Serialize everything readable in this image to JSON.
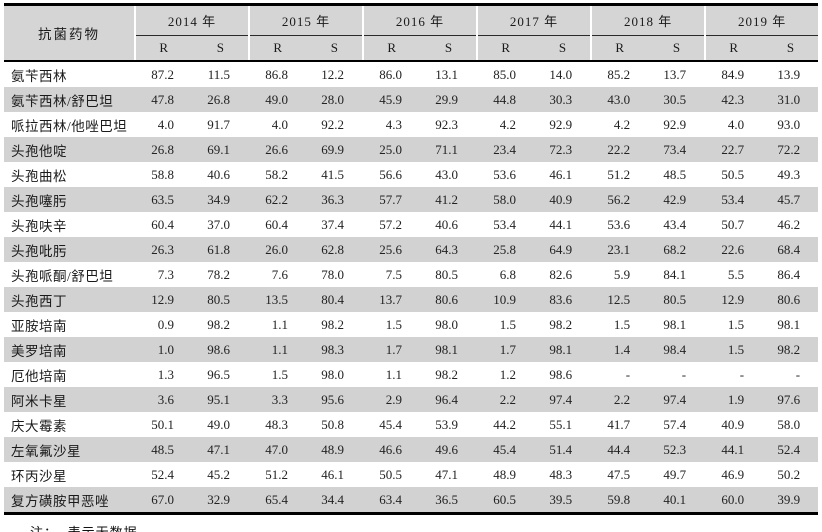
{
  "table": {
    "drug_header": "抗菌药物",
    "years": [
      "2014 年",
      "2015 年",
      "2016 年",
      "2017 年",
      "2018 年",
      "2019 年"
    ],
    "sub_headers": [
      "R",
      "S"
    ],
    "rows": [
      {
        "name": "氨苄西林",
        "values": [
          "87.2",
          "11.5",
          "86.8",
          "12.2",
          "86.0",
          "13.1",
          "85.0",
          "14.0",
          "85.2",
          "13.7",
          "84.9",
          "13.9"
        ]
      },
      {
        "name": "氨苄西林/舒巴坦",
        "values": [
          "47.8",
          "26.8",
          "49.0",
          "28.0",
          "45.9",
          "29.9",
          "44.8",
          "30.3",
          "43.0",
          "30.5",
          "42.3",
          "31.0"
        ]
      },
      {
        "name": "哌拉西林/他唑巴坦",
        "values": [
          "4.0",
          "91.7",
          "4.0",
          "92.2",
          "4.3",
          "92.3",
          "4.2",
          "92.9",
          "4.2",
          "92.9",
          "4.0",
          "93.0"
        ]
      },
      {
        "name": "头孢他啶",
        "values": [
          "26.8",
          "69.1",
          "26.6",
          "69.9",
          "25.0",
          "71.1",
          "23.4",
          "72.3",
          "22.2",
          "73.4",
          "22.7",
          "72.2"
        ]
      },
      {
        "name": "头孢曲松",
        "values": [
          "58.8",
          "40.6",
          "58.2",
          "41.5",
          "56.6",
          "43.0",
          "53.6",
          "46.1",
          "51.2",
          "48.5",
          "50.5",
          "49.3"
        ]
      },
      {
        "name": "头孢噻肟",
        "values": [
          "63.5",
          "34.9",
          "62.2",
          "36.3",
          "57.7",
          "41.2",
          "58.0",
          "40.9",
          "56.2",
          "42.9",
          "53.4",
          "45.7"
        ]
      },
      {
        "name": "头孢呋辛",
        "values": [
          "60.4",
          "37.0",
          "60.4",
          "37.4",
          "57.2",
          "40.6",
          "53.4",
          "44.1",
          "53.6",
          "43.4",
          "50.7",
          "46.2"
        ]
      },
      {
        "name": "头孢吡肟",
        "values": [
          "26.3",
          "61.8",
          "26.0",
          "62.8",
          "25.6",
          "64.3",
          "25.8",
          "64.9",
          "23.1",
          "68.2",
          "22.6",
          "68.4"
        ]
      },
      {
        "name": "头孢哌酮/舒巴坦",
        "values": [
          "7.3",
          "78.2",
          "7.6",
          "78.0",
          "7.5",
          "80.5",
          "6.8",
          "82.6",
          "5.9",
          "84.1",
          "5.5",
          "86.4"
        ]
      },
      {
        "name": "头孢西丁",
        "values": [
          "12.9",
          "80.5",
          "13.5",
          "80.4",
          "13.7",
          "80.6",
          "10.9",
          "83.6",
          "12.5",
          "80.5",
          "12.9",
          "80.6"
        ]
      },
      {
        "name": "亚胺培南",
        "values": [
          "0.9",
          "98.2",
          "1.1",
          "98.2",
          "1.5",
          "98.0",
          "1.5",
          "98.2",
          "1.5",
          "98.1",
          "1.5",
          "98.1"
        ]
      },
      {
        "name": "美罗培南",
        "values": [
          "1.0",
          "98.6",
          "1.1",
          "98.3",
          "1.7",
          "98.1",
          "1.7",
          "98.1",
          "1.4",
          "98.4",
          "1.5",
          "98.2"
        ]
      },
      {
        "name": "厄他培南",
        "values": [
          "1.3",
          "96.5",
          "1.5",
          "98.0",
          "1.1",
          "98.2",
          "1.2",
          "98.6",
          "-",
          "-",
          "-",
          "-"
        ]
      },
      {
        "name": "阿米卡星",
        "values": [
          "3.6",
          "95.1",
          "3.3",
          "95.6",
          "2.9",
          "96.4",
          "2.2",
          "97.4",
          "2.2",
          "97.4",
          "1.9",
          "97.6"
        ]
      },
      {
        "name": "庆大霉素",
        "values": [
          "50.1",
          "49.0",
          "48.3",
          "50.8",
          "45.4",
          "53.9",
          "44.2",
          "55.1",
          "41.7",
          "57.4",
          "40.9",
          "58.0"
        ]
      },
      {
        "name": "左氧氟沙星",
        "values": [
          "48.5",
          "47.1",
          "47.0",
          "48.9",
          "46.6",
          "49.6",
          "45.4",
          "51.4",
          "44.4",
          "52.3",
          "44.1",
          "52.4"
        ]
      },
      {
        "name": "环丙沙星",
        "values": [
          "52.4",
          "45.2",
          "51.2",
          "46.1",
          "50.5",
          "47.1",
          "48.9",
          "48.3",
          "47.5",
          "49.7",
          "46.9",
          "50.2"
        ]
      },
      {
        "name": "复方磺胺甲恶唑",
        "values": [
          "67.0",
          "32.9",
          "65.4",
          "34.4",
          "63.4",
          "36.5",
          "60.5",
          "39.5",
          "59.8",
          "40.1",
          "60.0",
          "39.9"
        ]
      }
    ]
  },
  "note": "注：- 表示无数据。",
  "colors": {
    "header_bg": "#d5d5d5",
    "shaded_row_bg": "#d2d2d2",
    "rule": "#000000"
  }
}
